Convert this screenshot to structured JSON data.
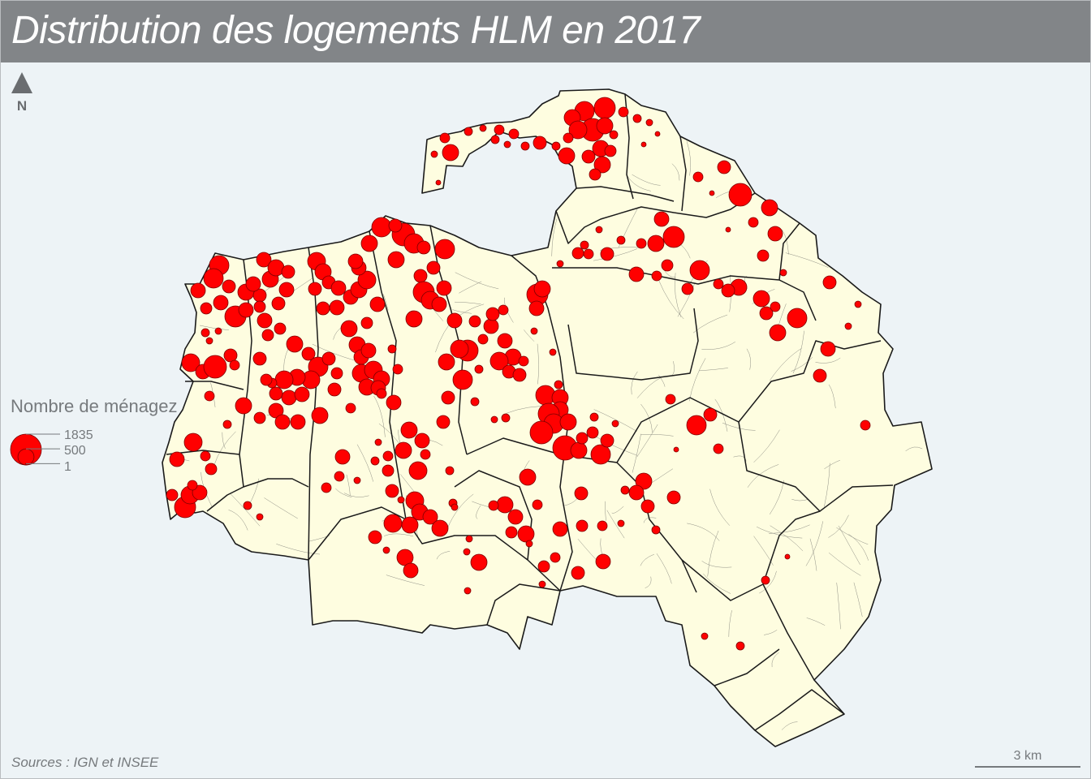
{
  "title": "Distribution des logements HLM en 2017",
  "north_label": "N",
  "legend": {
    "title": "Nombre de ménagez",
    "values": [
      "1835",
      "500",
      "1"
    ]
  },
  "sources": "Sources : IGN et INSEE",
  "scale_label": "3 km",
  "colors": {
    "title_bar": "#828588",
    "background": "#edf3f6",
    "land": "#fefde0",
    "border": "#1a1a1a",
    "symbol": "#ff0000"
  },
  "symbol_values": [
    1835,
    1400,
    1100,
    900,
    700,
    500,
    360,
    240,
    150,
    80,
    30,
    8,
    1
  ]
}
